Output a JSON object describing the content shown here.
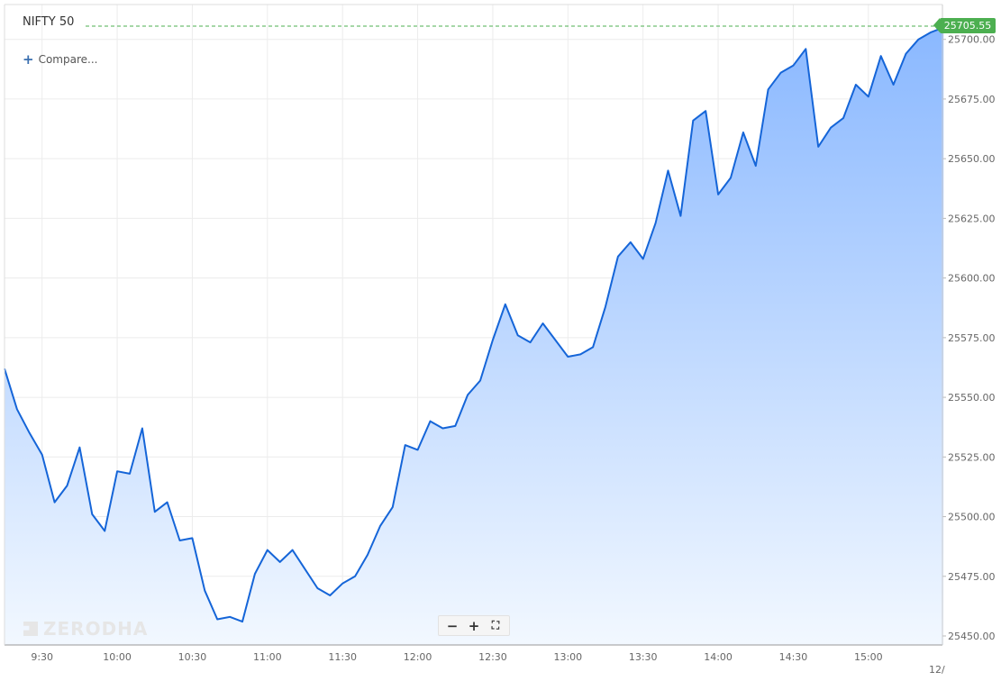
{
  "title": "NIFTY 50",
  "compare_label": "Compare...",
  "watermark": "ZERODHA",
  "controls": {
    "zoom_out": "−",
    "zoom_in": "+",
    "fullscreen": "⛶"
  },
  "colors": {
    "line": "#1565d8",
    "area_top": "#8ab8ff",
    "area_bottom": "#f2f8ff",
    "grid": "#ececec",
    "last_price_bg": "#4caf50",
    "last_price_line": "#4caf50"
  },
  "last_price": "25705.55",
  "chart_data": {
    "type": "area",
    "title": "NIFTY 50",
    "x_tick_labels": [
      "9:30",
      "10:00",
      "10:30",
      "11:00",
      "11:30",
      "12:00",
      "12:30",
      "13:00",
      "13:30",
      "14:00",
      "14:30",
      "15:00",
      "12/"
    ],
    "y_tick_labels": [
      "25700.00",
      "25675.00",
      "25650.00",
      "25625.00",
      "25600.00",
      "25575.00",
      "25550.00",
      "25525.00",
      "25500.00",
      "25475.00",
      "25450.00"
    ],
    "ylim": [
      25445,
      25710
    ],
    "grid": true,
    "series": [
      {
        "x": [
          "09:15",
          "09:20",
          "09:25",
          "09:30",
          "09:35",
          "09:40",
          "09:45",
          "09:50",
          "09:55",
          "10:00",
          "10:05",
          "10:10",
          "10:15",
          "10:20",
          "10:25",
          "10:30",
          "10:35",
          "10:40",
          "10:45",
          "10:50",
          "10:55",
          "11:00",
          "11:05",
          "11:10",
          "11:15",
          "11:20",
          "11:25",
          "11:30",
          "11:35",
          "11:40",
          "11:45",
          "11:50",
          "11:55",
          "12:00",
          "12:05",
          "12:10",
          "12:15",
          "12:20",
          "12:25",
          "12:30",
          "12:35",
          "12:40",
          "12:45",
          "12:50",
          "12:55",
          "13:00",
          "13:05",
          "13:10",
          "13:15",
          "13:20",
          "13:25",
          "13:30",
          "13:35",
          "13:40",
          "13:45",
          "13:50",
          "13:55",
          "14:00",
          "14:05",
          "14:10",
          "14:15",
          "14:20",
          "14:25",
          "14:30",
          "14:35",
          "14:40",
          "14:45",
          "14:50",
          "14:55",
          "15:00",
          "15:05",
          "15:10",
          "15:15",
          "15:20",
          "15:25",
          "15:30"
        ],
        "values": [
          25562,
          25545,
          25535,
          25526,
          25506,
          25513,
          25529,
          25501,
          25494,
          25519,
          25518,
          25537,
          25502,
          25506,
          25490,
          25491,
          25469,
          25457,
          25458,
          25456,
          25476,
          25486,
          25481,
          25486,
          25478,
          25470,
          25467,
          25472,
          25475,
          25484,
          25496,
          25504,
          25530,
          25528,
          25540,
          25537,
          25538,
          25551,
          25557,
          25574,
          25589,
          25576,
          25573,
          25581,
          25574,
          25567,
          25568,
          25571,
          25588,
          25609,
          25615,
          25608,
          25623,
          25645,
          25626,
          25666,
          25670,
          25635,
          25642,
          25661,
          25647,
          25679,
          25686,
          25689,
          25696,
          25655,
          25663,
          25667,
          25681,
          25676,
          25693,
          25681,
          25694,
          25700,
          25703,
          25705
        ]
      }
    ]
  }
}
